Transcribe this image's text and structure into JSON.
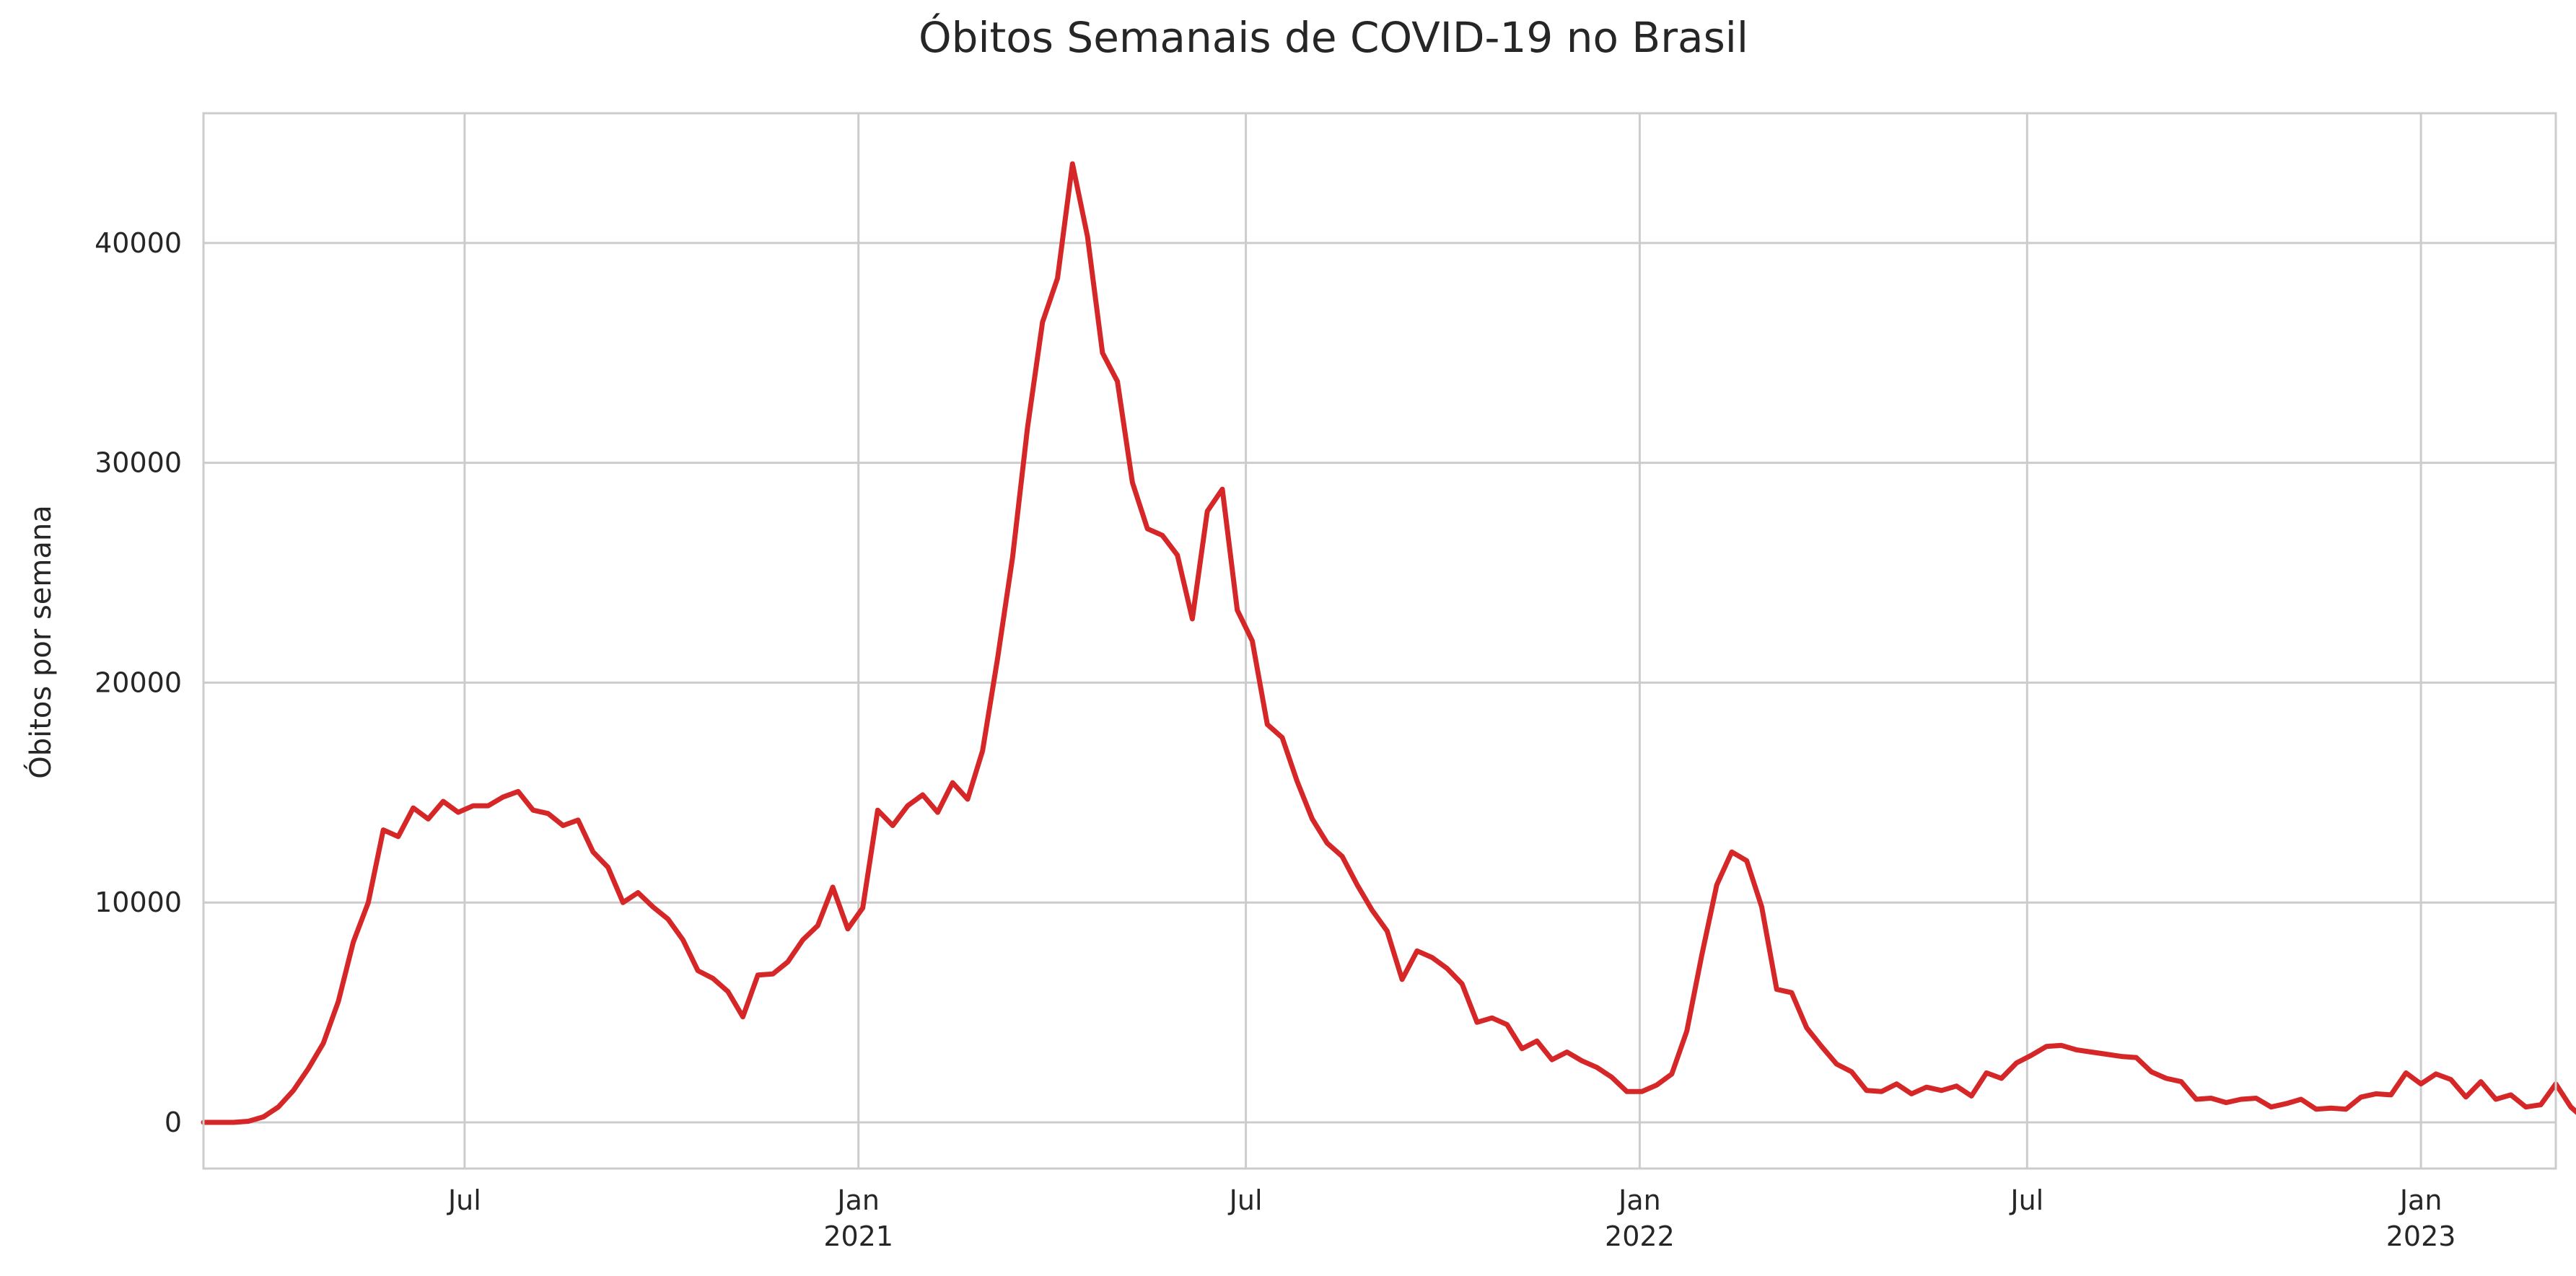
{
  "chart_data": {
    "type": "line",
    "title": "Óbitos Semanais de COVID-19 no Brasil",
    "xlabel": "",
    "ylabel": "Óbitos por semana",
    "xlim": [
      "2020-03-01",
      "2023-03-05"
    ],
    "ylim": [
      -2100,
      45900
    ],
    "grid": true,
    "legend": "none",
    "line_color": "#d62728",
    "yticks": [
      0,
      10000,
      20000,
      30000,
      40000
    ],
    "xticks": [
      {
        "date": "2020-07-01",
        "label": "Jul",
        "sublabel": ""
      },
      {
        "date": "2021-01-01",
        "label": "Jan",
        "sublabel": "2021"
      },
      {
        "date": "2021-07-01",
        "label": "Jul",
        "sublabel": ""
      },
      {
        "date": "2022-01-01",
        "label": "Jan",
        "sublabel": "2022"
      },
      {
        "date": "2022-07-01",
        "label": "Jul",
        "sublabel": ""
      },
      {
        "date": "2023-01-01",
        "label": "Jan",
        "sublabel": "2023"
      }
    ],
    "x_start": "2020-03-01",
    "x_step_days": 7,
    "values": [
      0,
      0,
      0,
      50,
      250,
      700,
      1450,
      2450,
      3600,
      5500,
      8200,
      10000,
      13300,
      13000,
      14300,
      13800,
      14600,
      14100,
      14400,
      14400,
      14800,
      15050,
      14200,
      14050,
      13500,
      13750,
      12300,
      11600,
      10000,
      10450,
      9800,
      9250,
      8300,
      6900,
      6550,
      5950,
      4800,
      6700,
      6750,
      7300,
      8300,
      8950,
      10700,
      8800,
      9750,
      14200,
      13500,
      14400,
      14900,
      14100,
      15450,
      14700,
      16900,
      21100,
      25700,
      31600,
      36400,
      38400,
      43600,
      40300,
      35000,
      33700,
      29100,
      27000,
      26700,
      25800,
      22900,
      27800,
      28800,
      23300,
      21900,
      18100,
      17500,
      15500,
      13800,
      12700,
      12100,
      10800,
      9650,
      8700,
      6500,
      7800,
      7500,
      7000,
      6300,
      4550,
      4750,
      4450,
      3350,
      3700,
      2850,
      3200,
      2800,
      2500,
      2050,
      1400,
      1400,
      1700,
      2200,
      4150,
      7600,
      10800,
      12300,
      11900,
      9800,
      6050,
      5900,
      4300,
      3450,
      2650,
      2300,
      1450,
      1400,
      1750,
      1300,
      1600,
      1450,
      1650,
      1200,
      2250,
      2000,
      2700,
      3050,
      3450,
      3500,
      3300,
      3200,
      3100,
      3000,
      2950,
      2300,
      2000,
      1850,
      1050,
      1100,
      900,
      1050,
      1100,
      700,
      850,
      1050,
      600,
      650,
      600,
      1150,
      1300,
      1250,
      2250,
      1750,
      2200,
      1950,
      1150,
      1850,
      1050,
      1250,
      700,
      800,
      1750,
      700,
      100,
      0
    ]
  }
}
